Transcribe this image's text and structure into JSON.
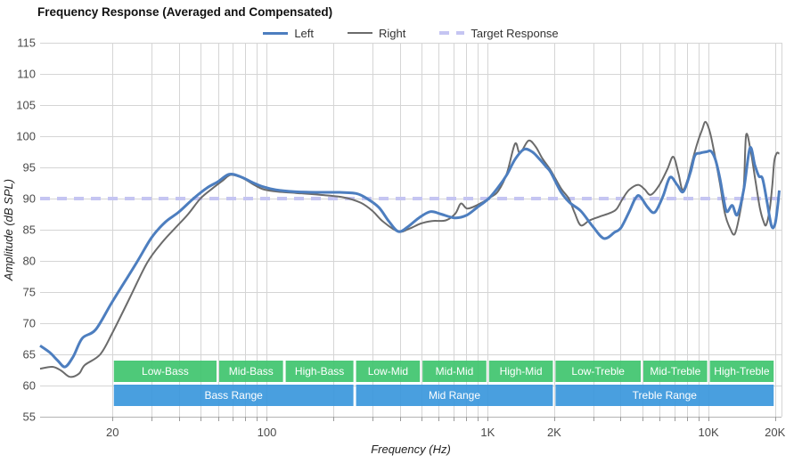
{
  "title": "Frequency Response (Averaged and Compensated)",
  "legend": {
    "items": [
      {
        "label": "Left",
        "color": "#4d7ebf",
        "kind": "solid",
        "weight": 3
      },
      {
        "label": "Right",
        "color": "#6b6b6b",
        "kind": "solid",
        "weight": 2
      },
      {
        "label": "Target Response",
        "color": "#c5c5f2",
        "kind": "dashed",
        "weight": 4
      }
    ]
  },
  "colors": {
    "left": "#4d7ebf",
    "right": "#6b6b6b",
    "target": "#c5c5f2",
    "grid": "#d5d5d5",
    "axis_line": "#b3b3b3",
    "tick": "#9a9a9a",
    "band_green": "#3fc46e",
    "band_blue": "#3a97dc"
  },
  "bands": {
    "sub_row": {
      "color": "#3fc46e",
      "items": [
        {
          "label": "Low-Bass",
          "f1": 20,
          "f2": 60
        },
        {
          "label": "Mid-Bass",
          "f1": 60,
          "f2": 120
        },
        {
          "label": "High-Bass",
          "f1": 120,
          "f2": 250
        },
        {
          "label": "Low-Mid",
          "f1": 250,
          "f2": 500
        },
        {
          "label": "Mid-Mid",
          "f1": 500,
          "f2": 1000
        },
        {
          "label": "High-Mid",
          "f1": 1000,
          "f2": 2000
        },
        {
          "label": "Low-Treble",
          "f1": 2000,
          "f2": 5000
        },
        {
          "label": "Mid-Treble",
          "f1": 5000,
          "f2": 10000
        },
        {
          "label": "High-Treble",
          "f1": 10000,
          "f2": 20000
        }
      ]
    },
    "main_row": {
      "color": "#3a97dc",
      "items": [
        {
          "label": "Bass Range",
          "f1": 20,
          "f2": 250
        },
        {
          "label": "Mid Range",
          "f1": 250,
          "f2": 2000
        },
        {
          "label": "Treble Range",
          "f1": 2000,
          "f2": 20000
        }
      ]
    }
  },
  "chart_data": {
    "type": "line",
    "xscale": "log",
    "xlabel": "Frequency (Hz)",
    "ylabel": "Amplitude (dB SPL)",
    "xlim": [
      9.4,
      21400
    ],
    "ylim": [
      55,
      115
    ],
    "grid": true,
    "legend_position": "top-center",
    "y_ticks": [
      55,
      60,
      65,
      70,
      75,
      80,
      85,
      90,
      95,
      100,
      105,
      110,
      115
    ],
    "x_tick_labels": [
      {
        "f": 20,
        "label": "20"
      },
      {
        "f": 100,
        "label": "100"
      },
      {
        "f": 1000,
        "label": "1K"
      },
      {
        "f": 2000,
        "label": "2K"
      },
      {
        "f": 10000,
        "label": "10K"
      },
      {
        "f": 20000,
        "label": "20K"
      }
    ],
    "x_gridlines": [
      20,
      30,
      40,
      50,
      60,
      70,
      80,
      90,
      100,
      200,
      300,
      400,
      500,
      600,
      700,
      800,
      900,
      1000,
      2000,
      3000,
      4000,
      5000,
      6000,
      7000,
      8000,
      9000,
      10000,
      20000
    ],
    "series": [
      {
        "name": "Left",
        "color": "#4d7ebf",
        "width": 3,
        "points": [
          [
            9.4,
            66.4
          ],
          [
            10.4,
            65.3
          ],
          [
            11.3,
            64.0
          ],
          [
            12.2,
            63.0
          ],
          [
            13.3,
            64.7
          ],
          [
            14.6,
            67.6
          ],
          [
            16.8,
            69.0
          ],
          [
            20,
            73.5
          ],
          [
            25.7,
            79.7
          ],
          [
            30,
            83.7
          ],
          [
            34.6,
            86.2
          ],
          [
            39.8,
            87.8
          ],
          [
            46.5,
            90.0
          ],
          [
            53.5,
            91.7
          ],
          [
            60,
            92.7
          ],
          [
            67.5,
            93.9
          ],
          [
            76,
            93.5
          ],
          [
            86,
            92.6
          ],
          [
            96,
            91.9
          ],
          [
            110,
            91.4
          ],
          [
            133,
            91.1
          ],
          [
            168,
            91.0
          ],
          [
            212,
            91.0
          ],
          [
            255,
            90.8
          ],
          [
            284,
            90.0
          ],
          [
            321,
            88.6
          ],
          [
            356,
            86.4
          ],
          [
            394,
            84.7
          ],
          [
            436,
            85.5
          ],
          [
            488,
            86.9
          ],
          [
            550,
            87.9
          ],
          [
            615,
            87.5
          ],
          [
            710,
            86.9
          ],
          [
            800,
            87.3
          ],
          [
            890,
            88.5
          ],
          [
            1010,
            90.0
          ],
          [
            1120,
            91.9
          ],
          [
            1220,
            93.8
          ],
          [
            1330,
            96.3
          ],
          [
            1460,
            97.9
          ],
          [
            1590,
            97.5
          ],
          [
            1710,
            96.4
          ],
          [
            1840,
            95.1
          ],
          [
            1930,
            94.2
          ],
          [
            2150,
            91.0
          ],
          [
            2360,
            89.3
          ],
          [
            2640,
            88.0
          ],
          [
            2980,
            85.6
          ],
          [
            3360,
            83.6
          ],
          [
            3760,
            84.6
          ],
          [
            4010,
            85.3
          ],
          [
            4360,
            87.8
          ],
          [
            4660,
            90.0
          ],
          [
            4880,
            90.4
          ],
          [
            5300,
            88.6
          ],
          [
            5710,
            87.8
          ],
          [
            6210,
            90.3
          ],
          [
            6690,
            93.4
          ],
          [
            7210,
            92.2
          ],
          [
            7690,
            91.1
          ],
          [
            8280,
            94.2
          ],
          [
            8670,
            96.9
          ],
          [
            9170,
            97.3
          ],
          [
            9790,
            97.5
          ],
          [
            10250,
            97.6
          ],
          [
            10730,
            96.3
          ],
          [
            11250,
            93.3
          ],
          [
            11670,
            90.2
          ],
          [
            12100,
            87.9
          ],
          [
            12800,
            88.9
          ],
          [
            13500,
            87.4
          ],
          [
            14450,
            91.5
          ],
          [
            15400,
            98.1
          ],
          [
            16200,
            95.4
          ],
          [
            16900,
            93.6
          ],
          [
            17560,
            93.2
          ],
          [
            18400,
            89.5
          ],
          [
            19280,
            85.6
          ],
          [
            20000,
            85.9
          ],
          [
            20560,
            88.8
          ],
          [
            20900,
            91.3
          ]
        ]
      },
      {
        "name": "Right",
        "color": "#6b6b6b",
        "width": 2,
        "points": [
          [
            9.4,
            62.7
          ],
          [
            10.7,
            63.0
          ],
          [
            11.7,
            62.4
          ],
          [
            12.8,
            61.4
          ],
          [
            14.1,
            61.9
          ],
          [
            15,
            63.3
          ],
          [
            17.6,
            65.0
          ],
          [
            20,
            68.5
          ],
          [
            23.9,
            74.0
          ],
          [
            28.7,
            79.7
          ],
          [
            33.6,
            83.0
          ],
          [
            39,
            85.5
          ],
          [
            44,
            87.5
          ],
          [
            50,
            90.0
          ],
          [
            56.6,
            91.6
          ],
          [
            63.2,
            92.9
          ],
          [
            68.7,
            93.8
          ],
          [
            77.6,
            93.3
          ],
          [
            87.6,
            92.2
          ],
          [
            96,
            91.5
          ],
          [
            112,
            91.1
          ],
          [
            135,
            90.9
          ],
          [
            173,
            90.6
          ],
          [
            222,
            90.2
          ],
          [
            267,
            89.3
          ],
          [
            301,
            88.0
          ],
          [
            336,
            86.3
          ],
          [
            394,
            84.7
          ],
          [
            444,
            85.2
          ],
          [
            498,
            86.0
          ],
          [
            560,
            86.4
          ],
          [
            646,
            86.5
          ],
          [
            714,
            87.6
          ],
          [
            756,
            89.2
          ],
          [
            806,
            88.4
          ],
          [
            890,
            88.9
          ],
          [
            1040,
            90.3
          ],
          [
            1120,
            91.3
          ],
          [
            1220,
            94.0
          ],
          [
            1330,
            98.8
          ],
          [
            1400,
            97.3
          ],
          [
            1530,
            99.3
          ],
          [
            1650,
            98.3
          ],
          [
            1770,
            96.4
          ],
          [
            1930,
            94.5
          ],
          [
            2150,
            91.6
          ],
          [
            2330,
            90.0
          ],
          [
            2470,
            87.8
          ],
          [
            2640,
            85.7
          ],
          [
            2890,
            86.5
          ],
          [
            3210,
            87.1
          ],
          [
            3590,
            87.7
          ],
          [
            3830,
            88.3
          ],
          [
            4090,
            90.0
          ],
          [
            4370,
            91.4
          ],
          [
            4800,
            92.2
          ],
          [
            5130,
            91.5
          ],
          [
            5470,
            90.6
          ],
          [
            5970,
            92.1
          ],
          [
            6510,
            94.7
          ],
          [
            6920,
            96.7
          ],
          [
            7310,
            94.0
          ],
          [
            7620,
            91.4
          ],
          [
            8030,
            93.0
          ],
          [
            8440,
            96.0
          ],
          [
            8920,
            99.0
          ],
          [
            9340,
            101.0
          ],
          [
            9690,
            102.3
          ],
          [
            10140,
            100.7
          ],
          [
            10600,
            97.5
          ],
          [
            11250,
            92.5
          ],
          [
            11880,
            87.5
          ],
          [
            12520,
            85.2
          ],
          [
            13140,
            84.3
          ],
          [
            13840,
            87.5
          ],
          [
            14450,
            92.0
          ],
          [
            14800,
            100.2
          ],
          [
            15540,
            97.5
          ],
          [
            16280,
            93.0
          ],
          [
            17080,
            88.5
          ],
          [
            17760,
            86.3
          ],
          [
            18260,
            85.8
          ],
          [
            18960,
            88.5
          ],
          [
            19480,
            92.5
          ],
          [
            19850,
            96.0
          ],
          [
            20380,
            97.3
          ],
          [
            20900,
            97.2
          ]
        ]
      },
      {
        "name": "Target Response",
        "color": "#c5c5f2",
        "width": 4,
        "dashed": true,
        "points": [
          [
            9.4,
            90
          ],
          [
            21400,
            90
          ]
        ]
      }
    ]
  }
}
